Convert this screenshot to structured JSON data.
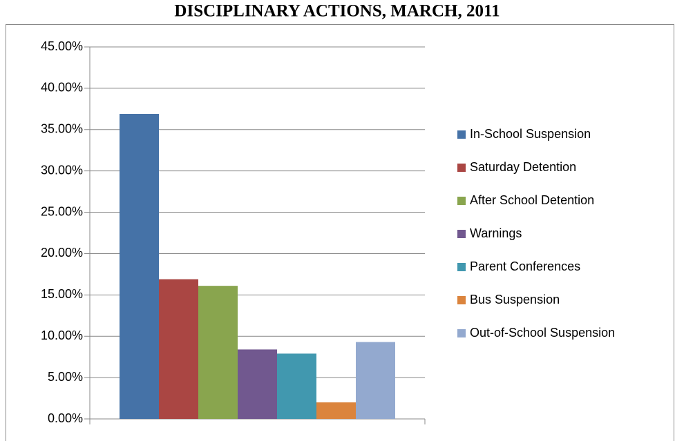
{
  "chart_data": {
    "type": "bar",
    "title": "DISCIPLINARY ACTIONS, MARCH, 2011",
    "categories": [
      null
    ],
    "series": [
      {
        "name": "In-School Suspension",
        "color": "#4572a7",
        "values": [
          36.9
        ]
      },
      {
        "name": "Saturday Detention",
        "color": "#aa4643",
        "values": [
          16.9
        ]
      },
      {
        "name": "After School Detention",
        "color": "#89a54e",
        "values": [
          16.1
        ]
      },
      {
        "name": "Warnings",
        "color": "#71588f",
        "values": [
          8.4
        ]
      },
      {
        "name": "Parent Conferences",
        "color": "#4198af",
        "values": [
          7.9
        ]
      },
      {
        "name": "Bus Suspension",
        "color": "#db843d",
        "values": [
          2.0
        ]
      },
      {
        "name": "Out-of-School Suspension",
        "color": "#93a9cf",
        "values": [
          9.3
        ]
      }
    ],
    "ylim": [
      0,
      45
    ],
    "yticks": [
      {
        "value": 0,
        "label": "0.00%"
      },
      {
        "value": 5,
        "label": "5.00%"
      },
      {
        "value": 10,
        "label": "10.00%"
      },
      {
        "value": 15,
        "label": "15.00%"
      },
      {
        "value": 20,
        "label": "20.00%"
      },
      {
        "value": 25,
        "label": "25.00%"
      },
      {
        "value": 30,
        "label": "30.00%"
      },
      {
        "value": 35,
        "label": "35.00%"
      },
      {
        "value": 40,
        "label": "40.00%"
      },
      {
        "value": 45,
        "label": "45.00%"
      }
    ],
    "grid": true,
    "legend": "right"
  }
}
